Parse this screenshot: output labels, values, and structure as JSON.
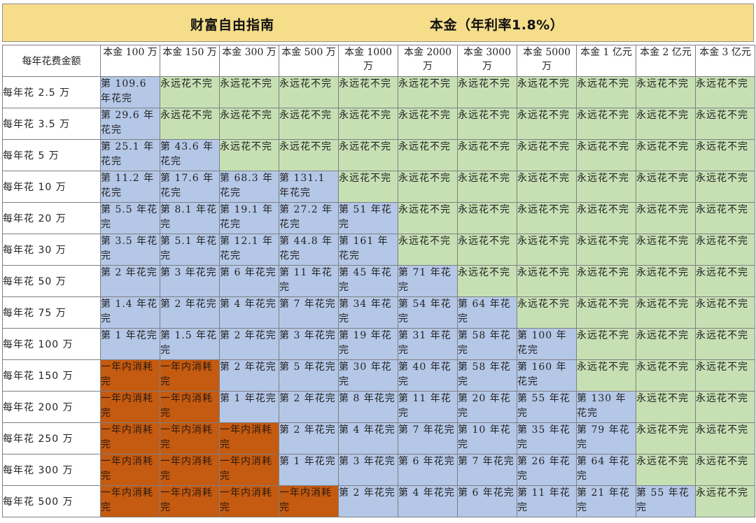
{
  "title_left": "财富自由指南",
  "title_right": "本金（年利率1.8%）",
  "corner_label": "每年花费金额",
  "columns": [
    "本金 100 万",
    "本金 150 万",
    "本金 300 万",
    "本金 500 万",
    "本金 1000 万",
    "本金 2000 万",
    "本金 3000 万",
    "本金 5000 万",
    "本金 1 亿元",
    "本金 2 亿元",
    "本金 3 亿元"
  ],
  "rows": [
    {
      "label": "每年花 2.5 万",
      "cells": [
        {
          "text": "第 109.6 年花完",
          "type": "years"
        },
        {
          "text": "永远花不完",
          "type": "never"
        },
        {
          "text": "永远花不完",
          "type": "never"
        },
        {
          "text": "永远花不完",
          "type": "never"
        },
        {
          "text": "永远花不完",
          "type": "never"
        },
        {
          "text": "永远花不完",
          "type": "never"
        },
        {
          "text": "永远花不完",
          "type": "never"
        },
        {
          "text": "永远花不完",
          "type": "never"
        },
        {
          "text": "永远花不完",
          "type": "never"
        },
        {
          "text": "永远花不完",
          "type": "never"
        },
        {
          "text": "永远花不完",
          "type": "never"
        }
      ]
    },
    {
      "label": "每年花 3.5 万",
      "cells": [
        {
          "text": "第 29.6 年花完",
          "type": "years"
        },
        {
          "text": "永远花不完",
          "type": "never"
        },
        {
          "text": "永远花不完",
          "type": "never"
        },
        {
          "text": "永远花不完",
          "type": "never"
        },
        {
          "text": "永远花不完",
          "type": "never"
        },
        {
          "text": "永远花不完",
          "type": "never"
        },
        {
          "text": "永远花不完",
          "type": "never"
        },
        {
          "text": "永远花不完",
          "type": "never"
        },
        {
          "text": "永远花不完",
          "type": "never"
        },
        {
          "text": "永远花不完",
          "type": "never"
        },
        {
          "text": "永远花不完",
          "type": "never"
        }
      ]
    },
    {
      "label": "每年花 5 万",
      "cells": [
        {
          "text": "第 25.1 年花完",
          "type": "years"
        },
        {
          "text": "第 43.6 年花完",
          "type": "years"
        },
        {
          "text": "永远花不完",
          "type": "never"
        },
        {
          "text": "永远花不完",
          "type": "never"
        },
        {
          "text": "永远花不完",
          "type": "never"
        },
        {
          "text": "永远花不完",
          "type": "never"
        },
        {
          "text": "永远花不完",
          "type": "never"
        },
        {
          "text": "永远花不完",
          "type": "never"
        },
        {
          "text": "永远花不完",
          "type": "never"
        },
        {
          "text": "永远花不完",
          "type": "never"
        },
        {
          "text": "永远花不完",
          "type": "never"
        }
      ]
    },
    {
      "label": "每年花 10 万",
      "cells": [
        {
          "text": "第 11.2 年花完",
          "type": "years"
        },
        {
          "text": "第 17.6 年花完",
          "type": "years"
        },
        {
          "text": "第 68.3 年花完",
          "type": "years"
        },
        {
          "text": "第 131.1 年花完",
          "type": "years"
        },
        {
          "text": "永远花不完",
          "type": "never"
        },
        {
          "text": "永远花不完",
          "type": "never"
        },
        {
          "text": "永远花不完",
          "type": "never"
        },
        {
          "text": "永远花不完",
          "type": "never"
        },
        {
          "text": "永远花不完",
          "type": "never"
        },
        {
          "text": "永远花不完",
          "type": "never"
        },
        {
          "text": "永远花不完",
          "type": "never"
        }
      ]
    },
    {
      "label": "每年花 20 万",
      "cells": [
        {
          "text": "第 5.5 年花完",
          "type": "years"
        },
        {
          "text": "第 8.1 年花完",
          "type": "years"
        },
        {
          "text": "第 19.1 年花完",
          "type": "years"
        },
        {
          "text": "第 27.2 年花完",
          "type": "years"
        },
        {
          "text": "第 51 年花完",
          "type": "years"
        },
        {
          "text": "永远花不完",
          "type": "never"
        },
        {
          "text": "永远花不完",
          "type": "never"
        },
        {
          "text": "永远花不完",
          "type": "never"
        },
        {
          "text": "永远花不完",
          "type": "never"
        },
        {
          "text": "永远花不完",
          "type": "never"
        },
        {
          "text": "永远花不完",
          "type": "never"
        }
      ]
    },
    {
      "label": "每年花 30 万",
      "cells": [
        {
          "text": "第 3.5 年花完",
          "type": "years"
        },
        {
          "text": "第 5.1 年花完",
          "type": "years"
        },
        {
          "text": "第 12.1 年花完",
          "type": "years"
        },
        {
          "text": "第 44.8 年花完",
          "type": "years"
        },
        {
          "text": "第 161 年花完",
          "type": "years"
        },
        {
          "text": "永远花不完",
          "type": "never"
        },
        {
          "text": "永远花不完",
          "type": "never"
        },
        {
          "text": "永远花不完",
          "type": "never"
        },
        {
          "text": "永远花不完",
          "type": "never"
        },
        {
          "text": "永远花不完",
          "type": "never"
        },
        {
          "text": "永远花不完",
          "type": "never"
        }
      ]
    },
    {
      "label": "每年花 50 万",
      "cells": [
        {
          "text": "第 2 年花完",
          "type": "years"
        },
        {
          "text": "第 3 年花完",
          "type": "years"
        },
        {
          "text": "第 6 年花完",
          "type": "years"
        },
        {
          "text": "第 11 年花完",
          "type": "years"
        },
        {
          "text": "第 45 年花完",
          "type": "years"
        },
        {
          "text": "第 71 年花完",
          "type": "years"
        },
        {
          "text": "永远花不完",
          "type": "never"
        },
        {
          "text": "永远花不完",
          "type": "never"
        },
        {
          "text": "永远花不完",
          "type": "never"
        },
        {
          "text": "永远花不完",
          "type": "never"
        },
        {
          "text": "永远花不完",
          "type": "never"
        }
      ]
    },
    {
      "label": "每年花 75 万",
      "cells": [
        {
          "text": "第 1.4 年花完",
          "type": "years"
        },
        {
          "text": "第 2 年花完",
          "type": "years"
        },
        {
          "text": "第 4 年花完",
          "type": "years"
        },
        {
          "text": "第 7 年花完",
          "type": "years"
        },
        {
          "text": "第 34 年花完",
          "type": "years"
        },
        {
          "text": "第 54 年花完",
          "type": "years"
        },
        {
          "text": "第 64 年花完",
          "type": "years"
        },
        {
          "text": "永远花不完",
          "type": "never"
        },
        {
          "text": "永远花不完",
          "type": "never"
        },
        {
          "text": "永远花不完",
          "type": "never"
        },
        {
          "text": "永远花不完",
          "type": "never"
        }
      ]
    },
    {
      "label": "每年花 100 万",
      "cells": [
        {
          "text": "第 1 年花完",
          "type": "years"
        },
        {
          "text": "第 1.5 年花完",
          "type": "years"
        },
        {
          "text": "第 2 年花完",
          "type": "years"
        },
        {
          "text": "第 3 年花完",
          "type": "years"
        },
        {
          "text": "第 19 年花完",
          "type": "years"
        },
        {
          "text": "第 31 年花完",
          "type": "years"
        },
        {
          "text": "第 58 年花完",
          "type": "years"
        },
        {
          "text": "第 100 年花完",
          "type": "years"
        },
        {
          "text": "永远花不完",
          "type": "never"
        },
        {
          "text": "永远花不完",
          "type": "never"
        },
        {
          "text": "永远花不完",
          "type": "never"
        }
      ]
    },
    {
      "label": "每年花 150 万",
      "cells": [
        {
          "text": "一年内消耗完",
          "type": "quick"
        },
        {
          "text": "一年内消耗完",
          "type": "quick"
        },
        {
          "text": "第 2 年花完",
          "type": "years"
        },
        {
          "text": "第 5 年花完",
          "type": "years"
        },
        {
          "text": "第 30 年花完",
          "type": "years"
        },
        {
          "text": "第 40 年花完",
          "type": "years"
        },
        {
          "text": "第 58 年花完",
          "type": "years"
        },
        {
          "text": "第 160 年花完",
          "type": "years"
        },
        {
          "text": "永远花不完",
          "type": "never"
        },
        {
          "text": "永远花不完",
          "type": "never"
        },
        {
          "text": "永远花不完",
          "type": "never"
        }
      ]
    },
    {
      "label": "每年花 200 万",
      "cells": [
        {
          "text": "一年内消耗完",
          "type": "quick"
        },
        {
          "text": "一年内消耗完",
          "type": "quick"
        },
        {
          "text": "第 1 年花完",
          "type": "years"
        },
        {
          "text": "第 2 年花完",
          "type": "years"
        },
        {
          "text": "第 8 年花完",
          "type": "years"
        },
        {
          "text": "第 11 年花完",
          "type": "years"
        },
        {
          "text": "第 20 年花完",
          "type": "years"
        },
        {
          "text": "第 55 年花完",
          "type": "years"
        },
        {
          "text": "第 130 年花完",
          "type": "years"
        },
        {
          "text": "永远花不完",
          "type": "never"
        },
        {
          "text": "永远花不完",
          "type": "never"
        }
      ]
    },
    {
      "label": "每年花 250 万",
      "cells": [
        {
          "text": "一年内消耗完",
          "type": "quick"
        },
        {
          "text": "一年内消耗完",
          "type": "quick"
        },
        {
          "text": "一年内消耗完",
          "type": "quick"
        },
        {
          "text": "第 2 年花完",
          "type": "years"
        },
        {
          "text": "第 4 年花完",
          "type": "years"
        },
        {
          "text": "第 7 年花完",
          "type": "years"
        },
        {
          "text": "第 10 年花完",
          "type": "years"
        },
        {
          "text": "第 35 年花完",
          "type": "years"
        },
        {
          "text": "第 79 年花完",
          "type": "years"
        },
        {
          "text": "永远花不完",
          "type": "never"
        },
        {
          "text": "永远花不完",
          "type": "never"
        }
      ]
    },
    {
      "label": "每年花 300 万",
      "cells": [
        {
          "text": "一年内消耗完",
          "type": "quick"
        },
        {
          "text": "一年内消耗完",
          "type": "quick"
        },
        {
          "text": "一年内消耗完",
          "type": "quick"
        },
        {
          "text": "第 1 年花完",
          "type": "years"
        },
        {
          "text": "第 3 年花完",
          "type": "years"
        },
        {
          "text": "第 6 年花完",
          "type": "years"
        },
        {
          "text": "第 7 年花完",
          "type": "years"
        },
        {
          "text": "第 26 年花完",
          "type": "years"
        },
        {
          "text": "第 64 年花完",
          "type": "years"
        },
        {
          "text": "永远花不完",
          "type": "never"
        },
        {
          "text": "永远花不完",
          "type": "never"
        }
      ]
    },
    {
      "label": "每年花 500 万",
      "cells": [
        {
          "text": "一年内消耗完",
          "type": "quick"
        },
        {
          "text": "一年内消耗完",
          "type": "quick"
        },
        {
          "text": "一年内消耗完",
          "type": "quick"
        },
        {
          "text": "一年内消耗完",
          "type": "quick"
        },
        {
          "text": "第 2 年花完",
          "type": "years"
        },
        {
          "text": "第 4 年花完",
          "type": "years"
        },
        {
          "text": "第 6 年花完",
          "type": "years"
        },
        {
          "text": "第 11 年花完",
          "type": "years"
        },
        {
          "text": "第 21 年花完",
          "type": "years"
        },
        {
          "text": "第 55 年花完",
          "type": "years"
        },
        {
          "text": "永远花不完",
          "type": "never"
        }
      ]
    }
  ],
  "colors": {
    "banner": "#f6dd8a",
    "never": "#c6e0b4",
    "years": "#b4c7e7",
    "quick": "#c55a11"
  }
}
